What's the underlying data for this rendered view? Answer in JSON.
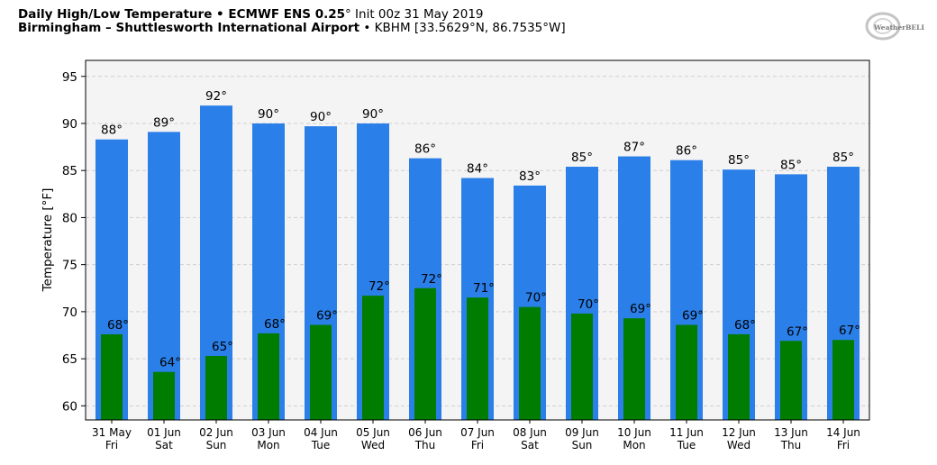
{
  "header": {
    "title_bold": "Daily High/Low Temperature • ECMWF ENS 0.25",
    "title_deg": "°",
    "title_rest": " Init 00z 31 May 2019",
    "location_bold": "Birmingham – Shuttlesworth International Airport",
    "location_rest": " • KBHM [33.5629",
    "location_deg1": "°",
    "location_mid": "N, 86.7535",
    "location_deg2": "°",
    "location_end": "W]"
  },
  "logo": {
    "text": "WeatherBELL",
    "icon": "weatherbell-logo"
  },
  "chart_data": {
    "type": "bar",
    "ylabel": "Temperature [°F]",
    "ylim": [
      58.5,
      96.7
    ],
    "yticks": [
      60,
      65,
      70,
      75,
      80,
      85,
      90,
      95
    ],
    "grid": true,
    "categories": [
      {
        "date": "31 May",
        "day": "Fri"
      },
      {
        "date": "01 Jun",
        "day": "Sat"
      },
      {
        "date": "02 Jun",
        "day": "Sun"
      },
      {
        "date": "03 Jun",
        "day": "Mon"
      },
      {
        "date": "04 Jun",
        "day": "Tue"
      },
      {
        "date": "05 Jun",
        "day": "Wed"
      },
      {
        "date": "06 Jun",
        "day": "Thu"
      },
      {
        "date": "07 Jun",
        "day": "Fri"
      },
      {
        "date": "08 Jun",
        "day": "Sat"
      },
      {
        "date": "09 Jun",
        "day": "Sun"
      },
      {
        "date": "10 Jun",
        "day": "Mon"
      },
      {
        "date": "11 Jun",
        "day": "Tue"
      },
      {
        "date": "12 Jun",
        "day": "Wed"
      },
      {
        "date": "13 Jun",
        "day": "Thu"
      },
      {
        "date": "14 Jun",
        "day": "Fri"
      }
    ],
    "series": [
      {
        "role": "high",
        "color": "#2b7fe8",
        "values": [
          88.3,
          89.1,
          91.9,
          90.0,
          89.7,
          90.0,
          86.3,
          84.2,
          83.4,
          85.4,
          86.5,
          86.1,
          85.1,
          84.6,
          85.4
        ],
        "labels": [
          "88°",
          "89°",
          "92°",
          "90°",
          "90°",
          "90°",
          "86°",
          "84°",
          "83°",
          "85°",
          "87°",
          "86°",
          "85°",
          "85°",
          "85°"
        ]
      },
      {
        "role": "low",
        "color": "#007d00",
        "values": [
          67.6,
          63.6,
          65.3,
          67.7,
          68.6,
          71.7,
          72.5,
          71.5,
          70.5,
          69.8,
          69.3,
          68.6,
          67.6,
          66.9,
          67.0
        ],
        "labels": [
          "68°",
          "64°",
          "65°",
          "68°",
          "69°",
          "72°",
          "72°",
          "71°",
          "70°",
          "70°",
          "69°",
          "69°",
          "68°",
          "67°",
          "67°"
        ]
      }
    ]
  }
}
